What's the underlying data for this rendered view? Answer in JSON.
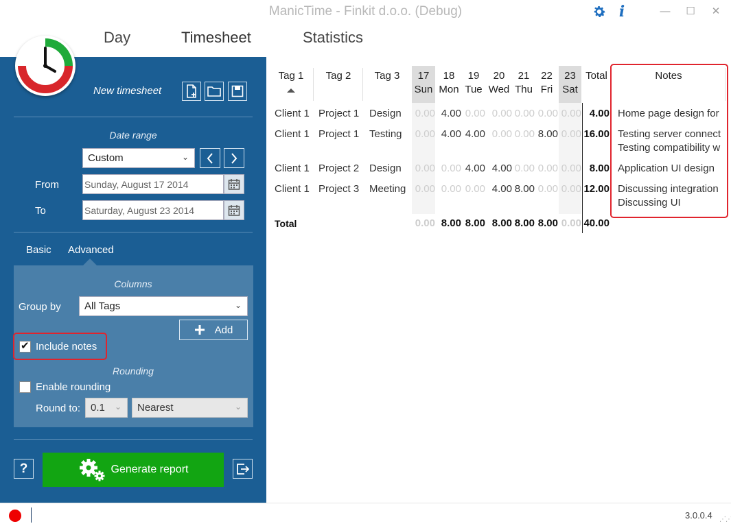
{
  "window": {
    "title": "ManicTime - Finkit d.o.o. (Debug)",
    "controls": {
      "minimize": "—",
      "maximize": "☐",
      "close": "✕"
    },
    "icons": [
      "gear-icon",
      "info-icon"
    ]
  },
  "tabs": [
    {
      "label": "Day"
    },
    {
      "label": "Timesheet",
      "active": true
    },
    {
      "label": "Statistics"
    }
  ],
  "sidebar": {
    "new_timesheet": "New timesheet",
    "date_range_label": "Date range",
    "range_value": "Custom",
    "from_label": "From",
    "from_value": "Sunday, August 17 2014",
    "to_label": "To",
    "to_value": "Saturday, August 23 2014",
    "subtabs": {
      "basic": "Basic",
      "advanced": "Advanced"
    },
    "columns_label": "Columns",
    "group_by_label": "Group by",
    "group_by_value": "All Tags",
    "add_label": "Add",
    "include_notes_label": "Include notes",
    "include_notes_checked": true,
    "rounding_label": "Rounding",
    "enable_rounding_label": "Enable rounding",
    "enable_rounding_checked": false,
    "round_to_label": "Round to:",
    "round_to_value": "0.1",
    "round_mode_value": "Nearest",
    "help_label": "?",
    "generate_label": "Generate report"
  },
  "table": {
    "headers": {
      "tag1": "Tag 1",
      "tag2": "Tag 2",
      "tag3": "Tag 3",
      "days": [
        {
          "num": "17",
          "name": "Sun"
        },
        {
          "num": "18",
          "name": "Mon"
        },
        {
          "num": "19",
          "name": "Tue"
        },
        {
          "num": "20",
          "name": "Wed"
        },
        {
          "num": "21",
          "name": "Thu"
        },
        {
          "num": "22",
          "name": "Fri"
        },
        {
          "num": "23",
          "name": "Sat"
        }
      ],
      "total": "Total",
      "notes": "Notes"
    },
    "rows": [
      {
        "tag1": "Client 1",
        "tag2": "Project 1",
        "tag3": "Design",
        "values": [
          "0.00",
          "4.00",
          "0.00",
          "0.00",
          "0.00",
          "0.00",
          "0.00"
        ],
        "total": "4.00",
        "notes": [
          "Home page design for"
        ]
      },
      {
        "tag1": "Client 1",
        "tag2": "Project 1",
        "tag3": "Testing",
        "values": [
          "0.00",
          "4.00",
          "4.00",
          "0.00",
          "0.00",
          "8.00",
          "0.00"
        ],
        "total": "16.00",
        "notes": [
          "Testing server connect",
          "Testing compatibility w"
        ]
      },
      {
        "tag1": "Client 1",
        "tag2": "Project 2",
        "tag3": "Design",
        "values": [
          "0.00",
          "0.00",
          "4.00",
          "4.00",
          "0.00",
          "0.00",
          "0.00"
        ],
        "total": "8.00",
        "notes": [
          "Application UI design"
        ]
      },
      {
        "tag1": "Client 1",
        "tag2": "Project 3",
        "tag3": "Meeting",
        "values": [
          "0.00",
          "0.00",
          "0.00",
          "4.00",
          "8.00",
          "0.00",
          "0.00"
        ],
        "total": "12.00",
        "notes": [
          "Discussing integration",
          "Discussing UI"
        ]
      }
    ],
    "totals": {
      "label": "Total",
      "values": [
        "0.00",
        "8.00",
        "8.00",
        "8.00",
        "8.00",
        "8.00",
        "0.00"
      ],
      "total": "40.00"
    }
  },
  "status": {
    "version": "3.0.0.4"
  }
}
